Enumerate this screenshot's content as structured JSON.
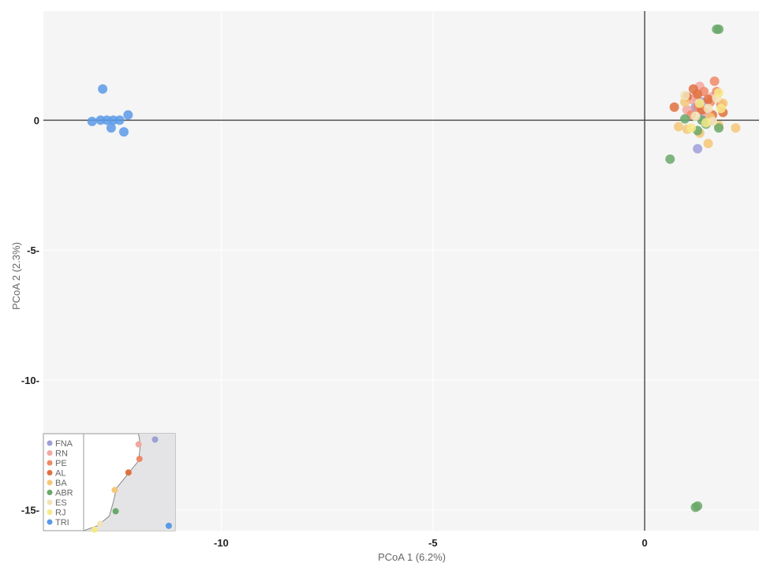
{
  "chart_data": {
    "type": "scatter",
    "title": "",
    "xlabel": "PCoA 1 (6.2%)",
    "ylabel": "PCoA 2 (2.3%)",
    "xlim": [
      -14.2,
      2.7
    ],
    "ylim": [
      -15.8,
      4.2
    ],
    "xticks": [
      -10,
      -5,
      0
    ],
    "yticks": [
      0,
      -5,
      -10,
      -15
    ],
    "xtick_labels": [
      "-10",
      "-5",
      "0"
    ],
    "ytick_labels": [
      "0",
      "-5-",
      "-10-",
      "-15-"
    ],
    "grid": true,
    "reference_lines": [
      {
        "axis": "x",
        "value": 0
      },
      {
        "axis": "y",
        "value": 0
      }
    ],
    "series": [
      {
        "name": "FNA",
        "color": "#9d9fd8",
        "points": [
          [
            1.25,
            -1.1
          ],
          [
            1.35,
            0.7
          ],
          [
            1.55,
            0.0
          ],
          [
            1.2,
            0.5
          ],
          [
            1.4,
            0.2
          ]
        ]
      },
      {
        "name": "RN",
        "color": "#f2a7a0",
        "points": [
          [
            1.1,
            0.8
          ],
          [
            1.3,
            1.3
          ],
          [
            1.6,
            0.9
          ],
          [
            1.0,
            0.4
          ],
          [
            1.45,
            0.3
          ],
          [
            1.2,
            0.9
          ]
        ]
      },
      {
        "name": "PE",
        "color": "#f08868",
        "points": [
          [
            1.65,
            1.5
          ],
          [
            1.4,
            1.1
          ],
          [
            1.8,
            0.6
          ],
          [
            1.1,
            0.2
          ],
          [
            1.55,
            0.7
          ],
          [
            1.25,
            0.5
          ],
          [
            1.7,
            1.1
          ]
        ]
      },
      {
        "name": "AL",
        "color": "#e07040",
        "points": [
          [
            1.15,
            1.2
          ],
          [
            0.7,
            0.5
          ],
          [
            1.35,
            0.4
          ],
          [
            1.85,
            0.3
          ],
          [
            1.5,
            0.8
          ],
          [
            1.0,
            0.9
          ],
          [
            1.25,
            1.0
          ],
          [
            1.6,
            0.2
          ]
        ]
      },
      {
        "name": "BA",
        "color": "#f5c778",
        "points": [
          [
            2.15,
            -0.3
          ],
          [
            1.5,
            -0.9
          ],
          [
            0.8,
            -0.25
          ],
          [
            1.3,
            -0.5
          ],
          [
            1.0,
            -0.35
          ],
          [
            1.75,
            -0.2
          ],
          [
            1.55,
            0.1
          ],
          [
            0.95,
            0.7
          ],
          [
            1.85,
            0.65
          ]
        ]
      },
      {
        "name": "ABR",
        "color": "#6aa86a",
        "points": [
          [
            1.7,
            3.5
          ],
          [
            1.75,
            3.5
          ],
          [
            1.2,
            -14.9
          ],
          [
            1.25,
            -14.85
          ],
          [
            0.6,
            -1.5
          ],
          [
            1.25,
            -0.4
          ],
          [
            1.45,
            -0.15
          ],
          [
            1.75,
            -0.3
          ],
          [
            0.95,
            0.05
          ],
          [
            1.35,
            0.0
          ]
        ]
      },
      {
        "name": "ES",
        "color": "#f3e3b8",
        "points": [
          [
            0.95,
            0.95
          ],
          [
            1.5,
            0.45
          ],
          [
            1.7,
            0.85
          ],
          [
            1.2,
            0.15
          ],
          [
            1.6,
            -0.05
          ]
        ]
      },
      {
        "name": "RJ",
        "color": "#f6e98a",
        "points": [
          [
            1.75,
            1.05
          ],
          [
            1.1,
            -0.3
          ],
          [
            1.45,
            -0.1
          ],
          [
            1.8,
            0.45
          ],
          [
            1.3,
            0.65
          ]
        ]
      },
      {
        "name": "TRI",
        "color": "#5a9ae8",
        "points": [
          [
            -12.8,
            1.2
          ],
          [
            -13.05,
            -0.05
          ],
          [
            -12.85,
            0.0
          ],
          [
            -12.7,
            0.0
          ],
          [
            -12.55,
            0.0
          ],
          [
            -12.4,
            0.0
          ],
          [
            -12.6,
            -0.3
          ],
          [
            -12.2,
            0.2
          ],
          [
            -12.3,
            -0.45
          ]
        ]
      }
    ],
    "legend": {
      "placement": "bottom-left",
      "entries": [
        "FNA",
        "RN",
        "PE",
        "AL",
        "BA",
        "ABR",
        "ES",
        "RJ",
        "TRI"
      ]
    },
    "inset_map": {
      "placement": "bottom-left",
      "sites": [
        {
          "name": "FNA",
          "color": "#9d9fd8",
          "lon": 0.78,
          "lat": 0.06
        },
        {
          "name": "RN",
          "color": "#f2a7a0",
          "lon": 0.6,
          "lat": 0.11
        },
        {
          "name": "PE",
          "color": "#f08868",
          "lon": 0.61,
          "lat": 0.26
        },
        {
          "name": "AL",
          "color": "#e07040",
          "lon": 0.49,
          "lat": 0.4
        },
        {
          "name": "BA",
          "color": "#f5c778",
          "lon": 0.34,
          "lat": 0.58
        },
        {
          "name": "ABR",
          "color": "#6aa86a",
          "lon": 0.35,
          "lat": 0.8
        },
        {
          "name": "ES",
          "color": "#f3e3b8",
          "lon": 0.18,
          "lat": 0.93
        },
        {
          "name": "RJ",
          "color": "#f6e98a",
          "lon": 0.12,
          "lat": 0.99
        },
        {
          "name": "TRI",
          "color": "#5a9ae8",
          "lon": 0.93,
          "lat": 0.95
        }
      ]
    }
  }
}
